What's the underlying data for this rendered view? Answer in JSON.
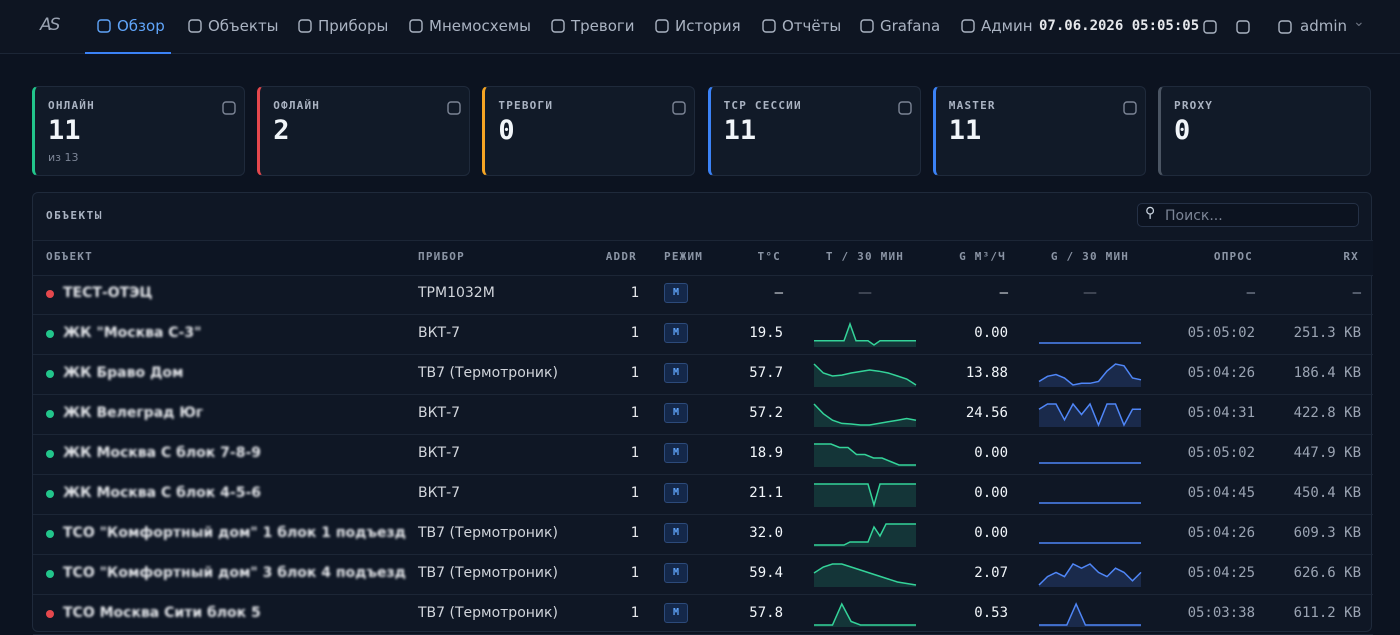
{
  "nav": {
    "logo": "AS",
    "items": [
      "Обзор",
      "Объекты",
      "Приборы",
      "Мнемосхемы",
      "Тревоги",
      "История",
      "Отчёты",
      "Grafana",
      "Админ"
    ],
    "active": 0,
    "datetime": "07.06.2026 05:05:05",
    "user": "admin"
  },
  "stats": [
    {
      "label": "ОНЛАЙН",
      "value": "11",
      "sub": "из 13",
      "color": "#22c58b"
    },
    {
      "label": "ОФЛАЙН",
      "value": "2",
      "color": "#e5484d"
    },
    {
      "label": "ТРЕВОГИ",
      "value": "0",
      "color": "#f5a524"
    },
    {
      "label": "TCP СЕССИИ",
      "value": "11",
      "color": "#3b82f6"
    },
    {
      "label": "MASTER",
      "value": "11",
      "color": "#3b82f6"
    },
    {
      "label": "PROXY",
      "value": "0",
      "color": "#4b5563"
    }
  ],
  "table": {
    "title": "ОБЪЕКТЫ",
    "search_placeholder": "Поиск...",
    "columns": [
      "ОБЪЕКТ",
      "ПРИБОР",
      "ADDR",
      "РЕЖИМ",
      "T°C",
      "T / 30 МИН",
      "G М³/Ч",
      "G / 30 МИН",
      "ОПРОС",
      "RX"
    ],
    "rows": [
      {
        "status": "#e5484d",
        "name": "ТЕСТ-ОТЭЦ",
        "device": "ТРМ1032М",
        "addr": "1",
        "mode": "M",
        "t": "—",
        "t_trend": "—",
        "g": "—",
        "g_trend": "—",
        "poll": "—",
        "rx": "—"
      },
      {
        "status": "#22c58b",
        "name": "ЖК \"Москва С-3\"",
        "device": "ВКТ-7",
        "addr": "1",
        "mode": "M",
        "t": "19.5",
        "t_trend": [
          5,
          5,
          5,
          5,
          5,
          5,
          13,
          5,
          5,
          5,
          3,
          5,
          5,
          5,
          5,
          5,
          5,
          5
        ],
        "g": "0.00",
        "g_trend": [
          0,
          0,
          0,
          0,
          0,
          0,
          0,
          0,
          0,
          0,
          0,
          0
        ],
        "poll": "05:05:02",
        "rx": "251.3 KB"
      },
      {
        "status": "#22c58b",
        "name": "ЖК Браво Дом",
        "device": "ТВ7 (Термотроник)",
        "addr": "1",
        "mode": "M",
        "t": "57.7",
        "t_trend": [
          10,
          7,
          6,
          6.3,
          7,
          7.5,
          8,
          7.6,
          7,
          6,
          5,
          3
        ],
        "g": "13.88",
        "g_trend": [
          3,
          4.5,
          5,
          4,
          2,
          2.5,
          2.5,
          3,
          6,
          8,
          7.5,
          4,
          3.5
        ],
        "poll": "05:04:26",
        "rx": "186.4 KB"
      },
      {
        "status": "#22c58b",
        "name": "ЖК Велеград Юг",
        "device": "ВКТ-7",
        "addr": "1",
        "mode": "M",
        "t": "57.2",
        "t_trend": [
          10,
          7,
          5,
          4,
          3.8,
          3.5,
          3.5,
          4,
          4.5,
          5,
          5.5,
          5
        ],
        "g": "24.56",
        "g_trend": [
          7,
          8,
          8,
          5,
          8,
          6,
          8,
          4,
          8,
          8,
          4,
          7,
          7
        ],
        "poll": "05:04:31",
        "rx": "422.8 KB"
      },
      {
        "status": "#22c58b",
        "name": "ЖК Москва С блок 7-8-9",
        "device": "ВКТ-7",
        "addr": "1",
        "mode": "M",
        "t": "18.9",
        "t_trend": [
          9,
          9,
          9,
          8,
          8,
          6,
          6,
          5,
          5,
          4,
          3,
          3,
          3
        ],
        "g": "0.00",
        "g_trend": [
          0,
          0,
          0,
          0,
          0,
          0,
          0,
          0,
          0,
          0,
          0,
          0
        ],
        "poll": "05:05:02",
        "rx": "447.9 KB"
      },
      {
        "status": "#22c58b",
        "name": "ЖК Москва С блок 4-5-6",
        "device": "ВКТ-7",
        "addr": "1",
        "mode": "M",
        "t": "21.1",
        "t_trend": [
          8,
          8,
          8,
          8,
          8,
          8,
          8,
          8,
          8,
          8,
          1,
          8,
          8,
          8,
          8,
          8,
          8,
          8
        ],
        "g": "0.00",
        "g_trend": [
          0,
          0,
          0,
          0,
          0,
          0,
          0,
          0,
          0,
          0,
          0,
          0
        ],
        "poll": "05:04:45",
        "rx": "450.4 KB"
      },
      {
        "status": "#22c58b",
        "name": "ТСО \"Комфортный дом\" 1 блок 1 подъезд",
        "device": "ТВ7 (Термотроник)",
        "addr": "1",
        "mode": "M",
        "t": "32.0",
        "t_trend": [
          2,
          2,
          2,
          2,
          2,
          2,
          3,
          3,
          3,
          3,
          8,
          5,
          9,
          9,
          9,
          9,
          9,
          9
        ],
        "g": "0.00",
        "g_trend": [
          0,
          0,
          0,
          0,
          0,
          0,
          0,
          0,
          0,
          0,
          0,
          0
        ],
        "poll": "05:04:26",
        "rx": "609.3 KB"
      },
      {
        "status": "#22c58b",
        "name": "ТСО \"Комфортный дом\" 3 блок 4 подъезд",
        "device": "ТВ7 (Термотроник)",
        "addr": "1",
        "mode": "M",
        "t": "59.4",
        "t_trend": [
          5,
          7,
          8,
          8,
          7,
          6,
          5,
          4,
          3,
          2,
          1.5,
          1
        ],
        "g": "2.07",
        "g_trend": [
          2,
          4,
          5,
          4,
          7,
          6,
          7,
          5,
          4,
          6,
          5,
          3,
          5
        ],
        "poll": "05:04:25",
        "rx": "626.6 KB"
      },
      {
        "status": "#e5484d",
        "name": "ТСО Москва Сити блок 5",
        "device": "ТВ7 (Термотроник)",
        "addr": "1",
        "mode": "M",
        "t": "57.8",
        "t_trend": [
          3,
          3,
          3,
          9,
          4,
          3,
          3,
          3,
          3,
          3,
          3,
          3
        ],
        "g": "0.53",
        "g_trend": [
          1,
          1,
          1,
          1,
          9,
          1,
          1,
          1,
          1,
          1,
          1,
          1
        ],
        "poll": "05:03:38",
        "rx": "611.2 KB"
      }
    ]
  }
}
